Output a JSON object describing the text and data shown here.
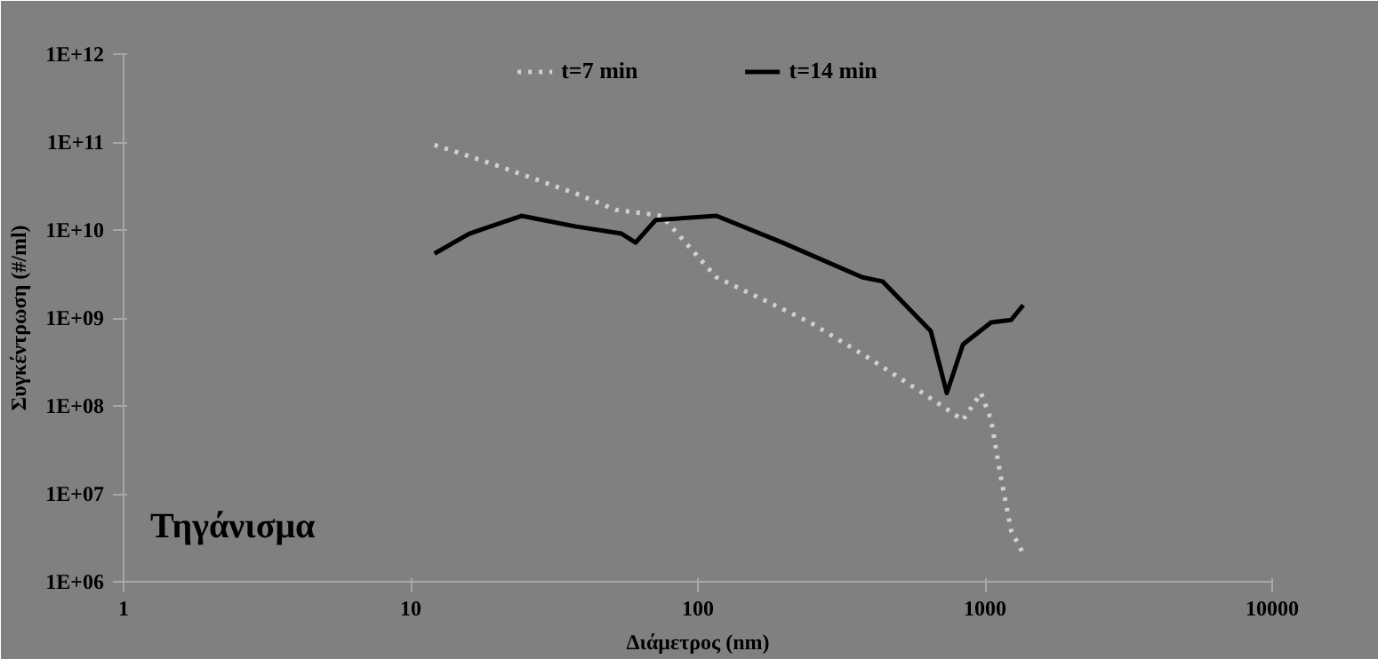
{
  "chart_data": {
    "type": "line",
    "xlabel": "Διάμετρος (nm)",
    "ylabel": "Συγκέντρωση (#/ml)",
    "annotations": [
      "Τηγάνισμα"
    ],
    "log": "xy",
    "legend": "top",
    "grid": false,
    "xlim": [
      1,
      10000
    ],
    "xticks": [
      1,
      10,
      100,
      1000,
      10000
    ],
    "ylim": [
      1000000.0,
      1000000000000.0
    ],
    "yticks": [
      {
        "value": 1000000.0,
        "label": "1E+06"
      },
      {
        "value": 10000000.0,
        "label": "1E+07"
      },
      {
        "value": 100000000.0,
        "label": "1E+08"
      },
      {
        "value": 1000000000.0,
        "label": "1E+09"
      },
      {
        "value": 10000000000.0,
        "label": "1E+10"
      },
      {
        "value": 100000000000.0,
        "label": "1E+11"
      },
      {
        "value": 1000000000000.0,
        "label": "1E+12"
      }
    ],
    "series": [
      {
        "name": "t=7 min",
        "color": "#d0d0d0",
        "line_style": "dotted",
        "x": [
          12.1,
          19.7,
          37.6,
          51.7,
          74.8,
          116,
          152,
          246,
          399,
          607,
          838,
          968,
          1050,
          1137,
          1233,
          1358
        ],
        "values": [
          93000000000.0,
          55000000000.0,
          26000000000.0,
          17000000000.0,
          14500000000.0,
          2900000000.0,
          1900000000.0,
          890000000.0,
          340000000.0,
          140000000.0,
          69000000.0,
          140000000.0,
          69000000.0,
          15000000.0,
          3800000.0,
          2100000.0
        ]
      },
      {
        "name": "t=14 min",
        "color": "#000000",
        "line_style": "solid",
        "x": [
          12.1,
          16,
          24.3,
          37.4,
          54.2,
          60.7,
          71.3,
          116,
          197,
          374,
          440,
          647,
          736,
          838,
          1050,
          1233,
          1358
        ],
        "values": [
          5400000000.0,
          9100000000.0,
          14500000000.0,
          11000000000.0,
          9100000000.0,
          7200000000.0,
          13000000000.0,
          14500000000.0,
          7200000000.0,
          2900000000.0,
          2600000000.0,
          710000000.0,
          140000000.0,
          500000000.0,
          890000000.0,
          950000000.0,
          1400000000.0
        ]
      }
    ]
  }
}
